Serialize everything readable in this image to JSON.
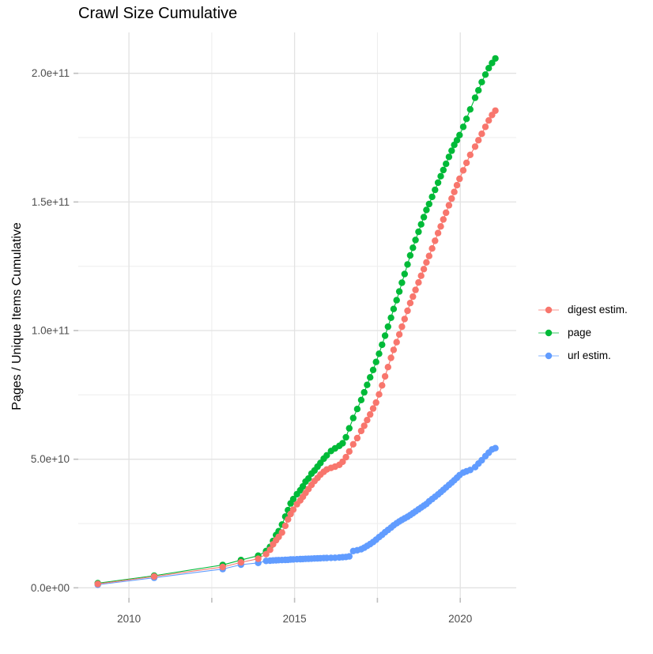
{
  "chart_data": {
    "type": "scatter",
    "title": "Crawl Size Cumulative",
    "xlabel": "",
    "ylabel": "Pages / Unique Items Cumulative",
    "values_unit": "billions (1e9 items)",
    "legend_position": "right",
    "grid": true,
    "x_years": [
      2009.06,
      2010.76,
      2012.83,
      2013.38,
      2013.9,
      2014.14,
      2014.26,
      2014.35,
      2014.44,
      2014.52,
      2014.62,
      2014.72,
      2014.8,
      2014.88,
      2014.96,
      2015.07,
      2015.17,
      2015.25,
      2015.33,
      2015.42,
      2015.51,
      2015.6,
      2015.69,
      2015.78,
      2015.88,
      2015.97,
      2016.1,
      2016.22,
      2016.35,
      2016.45,
      2016.55,
      2016.65,
      2016.77,
      2016.89,
      2017.01,
      2017.1,
      2017.19,
      2017.28,
      2017.37,
      2017.46,
      2017.55,
      2017.64,
      2017.73,
      2017.82,
      2017.91,
      2017.99,
      2018.08,
      2018.16,
      2018.24,
      2018.32,
      2018.41,
      2018.49,
      2018.57,
      2018.65,
      2018.74,
      2018.82,
      2018.9,
      2018.98,
      2019.06,
      2019.15,
      2019.24,
      2019.33,
      2019.41,
      2019.49,
      2019.57,
      2019.66,
      2019.74,
      2019.82,
      2019.9,
      2019.98,
      2020.09,
      2020.19,
      2020.3,
      2020.45,
      2020.55,
      2020.65,
      2020.76,
      2020.86,
      2020.96,
      2021.06
    ],
    "series": [
      {
        "name": "digest estim.",
        "color": "#F8766D",
        "values": [
          1.5,
          4.4,
          8.1,
          9.9,
          11.3,
          13.1,
          14.8,
          16.9,
          18.5,
          19.8,
          21.5,
          24.1,
          26.6,
          28.7,
          30.4,
          32.5,
          34.0,
          35.4,
          36.9,
          38.4,
          40.0,
          41.5,
          42.7,
          44.0,
          45.1,
          46.0,
          46.6,
          47.1,
          47.8,
          49.0,
          50.8,
          53.0,
          55.8,
          58.2,
          61.0,
          63.0,
          65.2,
          67.4,
          69.7,
          72.0,
          75.2,
          78.7,
          82.2,
          85.8,
          89.4,
          92.5,
          95.5,
          98.5,
          101.5,
          104.5,
          107.7,
          110.7,
          113.2,
          115.8,
          118.7,
          121.3,
          123.9,
          126.5,
          129.0,
          131.9,
          134.9,
          137.9,
          140.5,
          143.2,
          145.8,
          148.7,
          151.3,
          153.9,
          156.5,
          159.0,
          162.3,
          165.2,
          168.3,
          171.5,
          174.0,
          176.5,
          179.2,
          181.7,
          183.8,
          185.5
        ]
      },
      {
        "name": "page",
        "color": "#00BA38",
        "values": [
          1.8,
          4.7,
          8.9,
          10.8,
          12.5,
          14.3,
          15.9,
          18.2,
          20.5,
          22.0,
          24.6,
          27.7,
          30.2,
          32.8,
          34.5,
          36.4,
          37.9,
          39.4,
          41.3,
          42.5,
          44.4,
          45.6,
          47.1,
          48.5,
          50.2,
          51.5,
          53.2,
          54.2,
          55.2,
          56.2,
          58.5,
          62.0,
          66.0,
          69.5,
          73.0,
          76.0,
          78.9,
          81.8,
          84.7,
          87.8,
          91.0,
          94.5,
          98.0,
          101.5,
          105.0,
          108.4,
          111.8,
          115.2,
          118.6,
          122.0,
          125.7,
          129.2,
          132.2,
          135.2,
          138.4,
          141.3,
          144.1,
          146.9,
          149.2,
          152.0,
          154.7,
          157.5,
          160.0,
          162.4,
          164.8,
          167.5,
          169.9,
          172.2,
          174.0,
          176.0,
          179.2,
          182.3,
          186.0,
          190.5,
          193.4,
          196.6,
          199.5,
          202.0,
          204.0,
          205.8
        ]
      },
      {
        "name": "url estim.",
        "color": "#619CFF",
        "values": [
          1.2,
          3.9,
          7.3,
          9.0,
          9.7,
          10.45,
          10.55,
          10.65,
          10.7,
          10.75,
          10.8,
          10.85,
          10.9,
          11.0,
          11.05,
          11.1,
          11.15,
          11.2,
          11.25,
          11.3,
          11.35,
          11.4,
          11.45,
          11.5,
          11.55,
          11.6,
          11.65,
          11.7,
          11.8,
          11.9,
          12.0,
          12.2,
          14.3,
          14.6,
          15.0,
          15.6,
          16.3,
          17.0,
          17.8,
          18.7,
          19.7,
          20.6,
          21.6,
          22.5,
          23.4,
          24.3,
          25.1,
          25.8,
          26.4,
          27.0,
          27.6,
          28.3,
          29.0,
          29.7,
          30.5,
          31.2,
          31.9,
          32.6,
          33.6,
          34.5,
          35.4,
          36.3,
          37.2,
          38.1,
          39.0,
          40.0,
          40.9,
          41.8,
          42.8,
          43.8,
          44.8,
          45.3,
          45.8,
          46.9,
          48.3,
          49.6,
          51.2,
          52.5,
          53.8,
          54.3
        ]
      }
    ]
  },
  "axes": {
    "x": {
      "lim": [
        2008.47,
        2021.69
      ],
      "ticks": [
        {
          "v": 2010,
          "label": "2010"
        },
        {
          "v": 2012.5,
          "label": ""
        },
        {
          "v": 2015,
          "label": "2015"
        },
        {
          "v": 2017.5,
          "label": ""
        },
        {
          "v": 2020,
          "label": "2020"
        }
      ]
    },
    "y": {
      "lim": [
        -3.9,
        215.9
      ],
      "ticks": [
        {
          "v": 0,
          "label": "0.0e+00"
        },
        {
          "v": 50,
          "label": "5.0e+10"
        },
        {
          "v": 100,
          "label": "1.0e+11"
        },
        {
          "v": 150,
          "label": "1.5e+11"
        },
        {
          "v": 200,
          "label": "2.0e+11"
        }
      ],
      "minor": [
        25,
        75,
        125,
        175
      ]
    }
  },
  "style": {
    "grid_major_color": "#E2E2E2",
    "grid_minor_color": "#EDEDED",
    "tick_mark_color": "#BEBEBE",
    "tick_label_color": "#4D4D4D",
    "background": "#FFFFFF"
  }
}
